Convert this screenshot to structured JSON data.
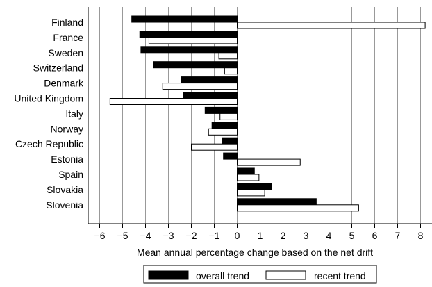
{
  "chart_data": {
    "type": "bar",
    "orientation": "horizontal",
    "categories": [
      "Finland",
      "France",
      "Sweden",
      "Switzerland",
      "Denmark",
      "United Kingdom",
      "Italy",
      "Norway",
      "Czech Republic",
      "Estonia",
      "Spain",
      "Slovakia",
      "Slovenia"
    ],
    "series": [
      {
        "name": "overall trend",
        "color": "#000000",
        "values": [
          -4.6,
          -4.25,
          -4.2,
          -3.65,
          -2.45,
          -2.35,
          -1.4,
          -1.1,
          -0.65,
          -0.6,
          0.75,
          1.5,
          3.45
        ]
      },
      {
        "name": "recent trend",
        "color": "#ffffff",
        "values": [
          8.2,
          -3.85,
          -0.8,
          -0.55,
          -3.25,
          -5.55,
          -0.75,
          -1.25,
          -2.0,
          2.75,
          0.95,
          1.2,
          5.3
        ]
      }
    ],
    "xlabel": "Mean annual percentage change based on the net drift",
    "ylabel": "",
    "xlim": [
      -6.5,
      8.5
    ],
    "xticks": [
      -6,
      -5,
      -4,
      -3,
      -2,
      -1,
      0,
      1,
      2,
      3,
      4,
      5,
      6,
      7,
      8
    ],
    "grid": "vertical",
    "legend_position": "bottom"
  }
}
